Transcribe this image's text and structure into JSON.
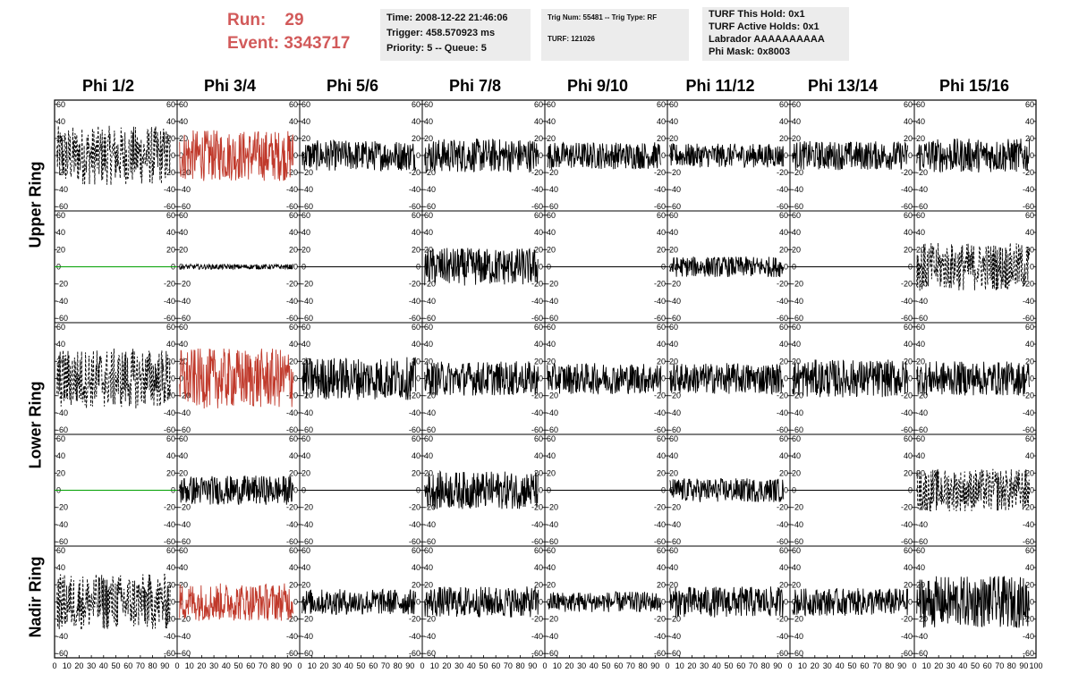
{
  "header": {
    "run_label": "Run:",
    "run_value": "29",
    "event_label": "Event:",
    "event_value": "3343717",
    "box1": [
      "Time: 2008-12-22 21:46:06",
      "Trigger: 458.570923 ms",
      "Priority: 5 -- Queue: 5"
    ],
    "box2": [
      "Trig Num: 55481 -- Trig Type: RF",
      "",
      "TURF: 121026"
    ],
    "box3": [
      "TURF This Hold: 0x1",
      "TURF Active Holds: 0x1",
      "Labrador AAAAAAAAAA",
      "Phi Mask: 0x8003"
    ]
  },
  "colors": {
    "red": "#c0392b",
    "black": "#000000",
    "green": "#00a000"
  },
  "chart_data": {
    "type": "line",
    "title": "",
    "columns": [
      "Phi 1/2",
      "Phi 3/4",
      "Phi 5/6",
      "Phi 7/8",
      "Phi 9/10",
      "Phi 11/12",
      "Phi 13/14",
      "Phi 15/16"
    ],
    "ring_labels": [
      "Upper Ring",
      "Lower Ring",
      "Nadir Ring"
    ],
    "ylim": [
      -65,
      65
    ],
    "xlim": [
      0,
      100
    ],
    "yticks": [
      -60,
      -40,
      -20,
      0,
      20,
      40,
      60
    ],
    "xticks": [
      0,
      10,
      20,
      30,
      40,
      50,
      60,
      70,
      80,
      90,
      100
    ],
    "grid": false,
    "panels": [
      {
        "row": 0,
        "col": 0,
        "style": "dashed",
        "color": "black",
        "amplitude": 35,
        "flat": false
      },
      {
        "row": 0,
        "col": 1,
        "style": "solid",
        "color": "red",
        "amplitude": 30,
        "flat": false
      },
      {
        "row": 0,
        "col": 2,
        "style": "solid",
        "color": "black",
        "amplitude": 18,
        "flat": false
      },
      {
        "row": 0,
        "col": 3,
        "style": "solid",
        "color": "black",
        "amplitude": 20,
        "flat": false
      },
      {
        "row": 0,
        "col": 4,
        "style": "solid",
        "color": "black",
        "amplitude": 16,
        "flat": false
      },
      {
        "row": 0,
        "col": 5,
        "style": "solid",
        "color": "black",
        "amplitude": 14,
        "flat": false
      },
      {
        "row": 0,
        "col": 6,
        "style": "solid",
        "color": "black",
        "amplitude": 17,
        "flat": false
      },
      {
        "row": 0,
        "col": 7,
        "style": "solid",
        "color": "black",
        "amplitude": 20,
        "flat": false
      },
      {
        "row": 1,
        "col": 0,
        "style": "solid",
        "color": "green",
        "amplitude": 0,
        "flat": true
      },
      {
        "row": 1,
        "col": 1,
        "style": "solid",
        "color": "black",
        "amplitude": 3,
        "flat": false
      },
      {
        "row": 1,
        "col": 2,
        "style": "solid",
        "color": "black",
        "amplitude": 0,
        "flat": true
      },
      {
        "row": 1,
        "col": 3,
        "style": "solid",
        "color": "black",
        "amplitude": 22,
        "flat": false
      },
      {
        "row": 1,
        "col": 4,
        "style": "solid",
        "color": "black",
        "amplitude": 0,
        "flat": true
      },
      {
        "row": 1,
        "col": 5,
        "style": "solid",
        "color": "black",
        "amplitude": 12,
        "flat": false
      },
      {
        "row": 1,
        "col": 6,
        "style": "solid",
        "color": "black",
        "amplitude": 0,
        "flat": true
      },
      {
        "row": 1,
        "col": 7,
        "style": "dashed",
        "color": "black",
        "amplitude": 28,
        "flat": false
      },
      {
        "row": 2,
        "col": 0,
        "style": "dashed",
        "color": "black",
        "amplitude": 35,
        "flat": false
      },
      {
        "row": 2,
        "col": 1,
        "style": "solid",
        "color": "red",
        "amplitude": 35,
        "flat": false
      },
      {
        "row": 2,
        "col": 2,
        "style": "solid",
        "color": "black",
        "amplitude": 25,
        "flat": false
      },
      {
        "row": 2,
        "col": 3,
        "style": "solid",
        "color": "black",
        "amplitude": 20,
        "flat": false
      },
      {
        "row": 2,
        "col": 4,
        "style": "solid",
        "color": "black",
        "amplitude": 18,
        "flat": false
      },
      {
        "row": 2,
        "col": 5,
        "style": "solid",
        "color": "black",
        "amplitude": 18,
        "flat": false
      },
      {
        "row": 2,
        "col": 6,
        "style": "solid",
        "color": "black",
        "amplitude": 22,
        "flat": false
      },
      {
        "row": 2,
        "col": 7,
        "style": "solid",
        "color": "black",
        "amplitude": 20,
        "flat": false
      },
      {
        "row": 3,
        "col": 0,
        "style": "solid",
        "color": "green",
        "amplitude": 0,
        "flat": true
      },
      {
        "row": 3,
        "col": 1,
        "style": "solid",
        "color": "black",
        "amplitude": 17,
        "flat": false
      },
      {
        "row": 3,
        "col": 2,
        "style": "solid",
        "color": "black",
        "amplitude": 0,
        "flat": true
      },
      {
        "row": 3,
        "col": 3,
        "style": "solid",
        "color": "black",
        "amplitude": 22,
        "flat": false
      },
      {
        "row": 3,
        "col": 4,
        "style": "solid",
        "color": "black",
        "amplitude": 0,
        "flat": true
      },
      {
        "row": 3,
        "col": 5,
        "style": "solid",
        "color": "black",
        "amplitude": 14,
        "flat": false
      },
      {
        "row": 3,
        "col": 6,
        "style": "solid",
        "color": "black",
        "amplitude": 0,
        "flat": true
      },
      {
        "row": 3,
        "col": 7,
        "style": "dashed",
        "color": "black",
        "amplitude": 25,
        "flat": false
      },
      {
        "row": 4,
        "col": 0,
        "style": "dashed",
        "color": "black",
        "amplitude": 33,
        "flat": false
      },
      {
        "row": 4,
        "col": 1,
        "style": "solid",
        "color": "red",
        "amplitude": 22,
        "flat": false
      },
      {
        "row": 4,
        "col": 2,
        "style": "solid",
        "color": "black",
        "amplitude": 15,
        "flat": false
      },
      {
        "row": 4,
        "col": 3,
        "style": "solid",
        "color": "black",
        "amplitude": 18,
        "flat": false
      },
      {
        "row": 4,
        "col": 4,
        "style": "solid",
        "color": "black",
        "amplitude": 12,
        "flat": false
      },
      {
        "row": 4,
        "col": 5,
        "style": "solid",
        "color": "black",
        "amplitude": 18,
        "flat": false
      },
      {
        "row": 4,
        "col": 6,
        "style": "solid",
        "color": "black",
        "amplitude": 16,
        "flat": false
      },
      {
        "row": 4,
        "col": 7,
        "style": "solid",
        "color": "black",
        "amplitude": 30,
        "flat": false
      }
    ]
  }
}
